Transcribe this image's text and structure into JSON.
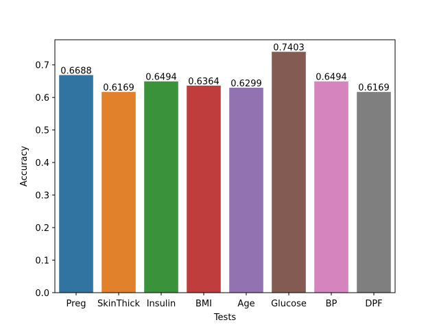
{
  "chart_data": {
    "type": "bar",
    "title": "",
    "xlabel": "Tests",
    "ylabel": "Accuracy",
    "categories": [
      "Preg",
      "SkinThick",
      "Insulin",
      "BMI",
      "Age",
      "Glucose",
      "BP",
      "DPF"
    ],
    "values": [
      0.6688,
      0.6169,
      0.6494,
      0.6364,
      0.6299,
      0.7403,
      0.6494,
      0.6169
    ],
    "value_labels": [
      "0.6688",
      "0.6169",
      "0.6494",
      "0.6364",
      "0.6299",
      "0.7403",
      "0.6494",
      "0.6169"
    ],
    "colors": [
      "#3274a1",
      "#e1812c",
      "#3a923a",
      "#c03d3e",
      "#9372b2",
      "#845b53",
      "#d684bd",
      "#7f7f7f"
    ],
    "yticks": [
      0.0,
      0.1,
      0.2,
      0.3,
      0.4,
      0.5,
      0.6,
      0.7
    ],
    "ytick_labels": [
      "0.0",
      "0.1",
      "0.2",
      "0.3",
      "0.4",
      "0.5",
      "0.6",
      "0.7"
    ],
    "ylim": [
      0,
      0.7773
    ],
    "grid": false,
    "legend": "none"
  }
}
